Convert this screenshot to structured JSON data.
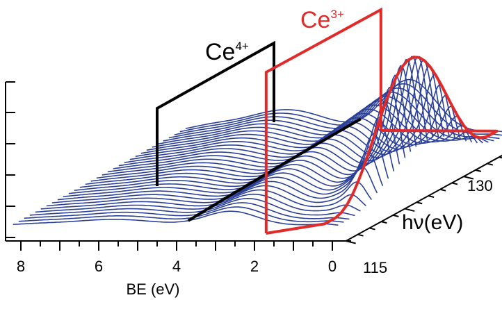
{
  "chart_data": {
    "type": "waterfall",
    "xlabel": "BE (eV)",
    "zlabel": "hν(eV)",
    "x_ticks": [
      "8",
      "6",
      "4",
      "2",
      "0"
    ],
    "z_ticks": [
      "115",
      "130"
    ],
    "x_range": [
      8.2,
      -0.4
    ],
    "z_range": [
      115,
      130
    ],
    "series_count": 32,
    "series_color": "#2a3f98",
    "annotations": [
      {
        "label_base": "Ce",
        "label_sup": "4+",
        "color": "#000000",
        "be_range": [
          4.5,
          1.5
        ]
      },
      {
        "label_base": "Ce",
        "label_sup": "3+",
        "color": "#e02b2b",
        "be_range": [
          1.7,
          -0.2
        ]
      }
    ]
  }
}
